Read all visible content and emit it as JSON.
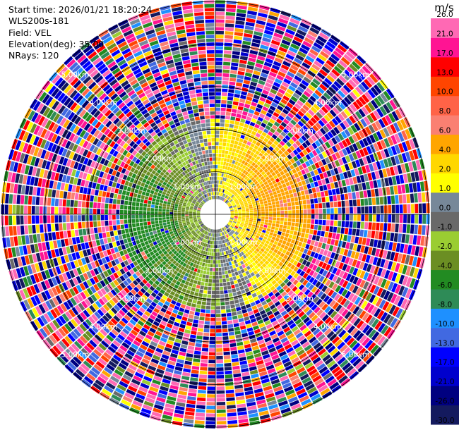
{
  "info": {
    "start_time": "Start time: 2026/01/21 18:20:24",
    "instrument": "WLS200s-181",
    "field": "Field: VEL",
    "elevation": "Elevation(deg): 35.00",
    "nrays": "NRays: 120"
  },
  "chart_data": {
    "type": "heatmap",
    "projection": "polar-ppi",
    "field": "VEL",
    "unit": "m/s",
    "n_rays": 120,
    "elevation_deg": 35.0,
    "max_range_km": 5.0,
    "range_rings_km": [
      1,
      2,
      3,
      4,
      5
    ],
    "ring_labels": [
      "1.00km",
      "2.00km",
      "3.00km",
      "4.00km",
      "5.00km"
    ],
    "grid": true,
    "colorbar": {
      "placement": "right",
      "levels": [
        -30.0,
        -26.0,
        -21.0,
        -17.0,
        -13.0,
        -10.0,
        -8.0,
        -6.0,
        -4.0,
        -2.0,
        -1.0,
        0.0,
        1.0,
        2.0,
        4.0,
        6.0,
        8.0,
        10.0,
        13.0,
        17.0,
        21.0,
        26.0
      ],
      "tick_labels": [
        "-30.0",
        "-26.0",
        "-21.0",
        "-17.0",
        "-13.0",
        "-10.0",
        "-8.0",
        "-6.0",
        "-4.0",
        "-2.0",
        "-1.0",
        "0.0",
        "1.0",
        "2.0",
        "4.0",
        "6.0",
        "8.0",
        "10.0",
        "13.0",
        "17.0",
        "21.0",
        "26.0"
      ],
      "colors": [
        "#141a5e",
        "#000080",
        "#0000cd",
        "#0000ff",
        "#4169e1",
        "#1e90ff",
        "#2e8b57",
        "#228b22",
        "#6b8e23",
        "#9acd32",
        "#696969",
        "#778899",
        "#ffff00",
        "#ffd700",
        "#ffa500",
        "#fa8072",
        "#ff6347",
        "#ff4500",
        "#ff0000",
        "#ff1493",
        "#ff69b4"
      ]
    },
    "pattern": {
      "inner_range_km": 2.2,
      "inner_description_values": {
        "west_sector_min": -6.0,
        "east_sector_max": 8.0,
        "near_zero_core_km": 1.0
      },
      "outer_range_noise": true
    }
  },
  "colors": {
    "ring": "#000000",
    "background": "#ffffff"
  }
}
